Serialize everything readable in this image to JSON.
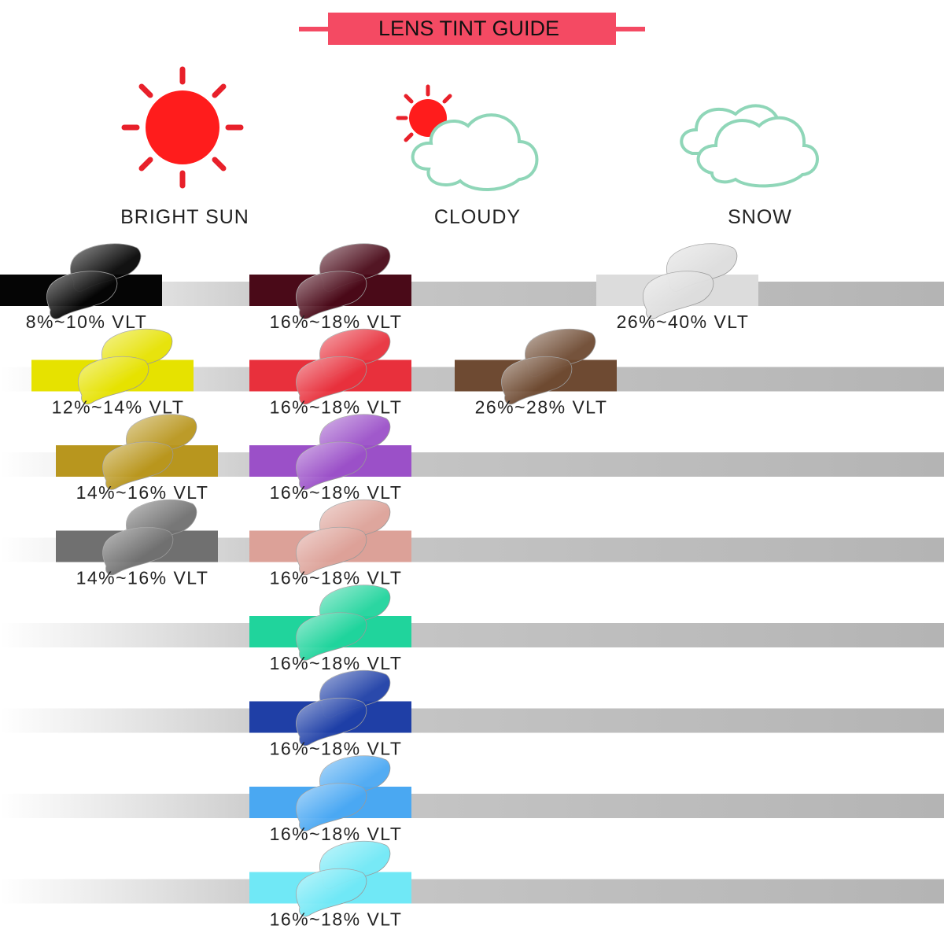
{
  "title": "LENS TINT GUIDE",
  "conditions": [
    {
      "label": "BRIGHT SUN"
    },
    {
      "label": "CLOUDY"
    },
    {
      "label": "SNOW"
    }
  ],
  "lenses": [
    {
      "label": "8%~10% VLT",
      "color": "#050505"
    },
    {
      "label": "12%~14% VLT",
      "color": "#e6e200"
    },
    {
      "label": "14%~16% VLT",
      "color": "#b8961e"
    },
    {
      "label": "14%~16% VLT",
      "color": "#707070"
    },
    {
      "label": "16%~18% VLT",
      "color": "#4a0a18"
    },
    {
      "label": "16%~18% VLT",
      "color": "#e8303c"
    },
    {
      "label": "16%~18% VLT",
      "color": "#9b50c8"
    },
    {
      "label": "16%~18% VLT",
      "color": "#dca198"
    },
    {
      "label": "16%~18% VLT",
      "color": "#20d49c"
    },
    {
      "label": "16%~18% VLT",
      "color": "#1f3fa6"
    },
    {
      "label": "16%~18% VLT",
      "color": "#4aa8f2"
    },
    {
      "label": "16%~18% VLT",
      "color": "#70e8f6"
    },
    {
      "label": "26%~28% VLT",
      "color": "#6e4a32"
    },
    {
      "label": "26%~40% VLT",
      "color": "#dcdcdc"
    }
  ]
}
